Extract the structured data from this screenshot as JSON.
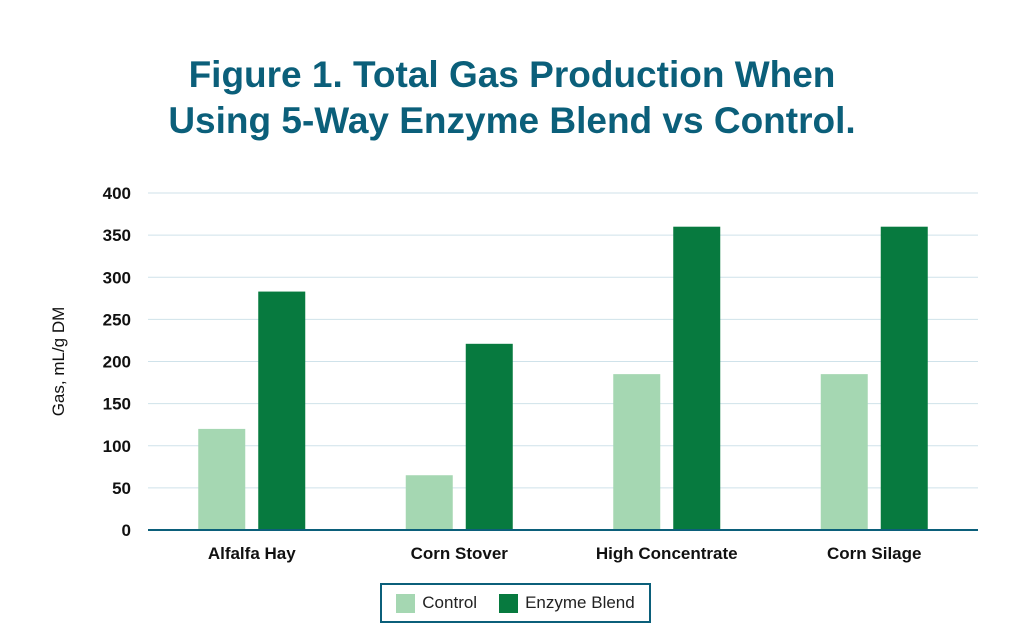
{
  "chart_data": {
    "type": "bar",
    "title_lines": [
      "Figure 1. Total Gas Production When",
      "Using 5-Way Enzyme Blend vs Control."
    ],
    "xlabel": "",
    "ylabel": "Gas, mL/g DM",
    "categories": [
      "Alfalfa Hay",
      "Corn Stover",
      "High Concentrate",
      "Corn Silage"
    ],
    "series": [
      {
        "name": "Control",
        "values": [
          120,
          65,
          185,
          185
        ],
        "color": "#a5d7b2"
      },
      {
        "name": "Enzyme Blend",
        "values": [
          283,
          221,
          360,
          360
        ],
        "color": "#077a3f"
      }
    ],
    "ylim": [
      0,
      400
    ],
    "yticks": [
      0,
      50,
      100,
      150,
      200,
      250,
      300,
      350,
      400
    ],
    "grid": true,
    "legend_position": "bottom-center",
    "colors": {
      "title": "#0b5f7a",
      "axis": "#0b5f7a",
      "grid": "#cfe2ea"
    }
  }
}
